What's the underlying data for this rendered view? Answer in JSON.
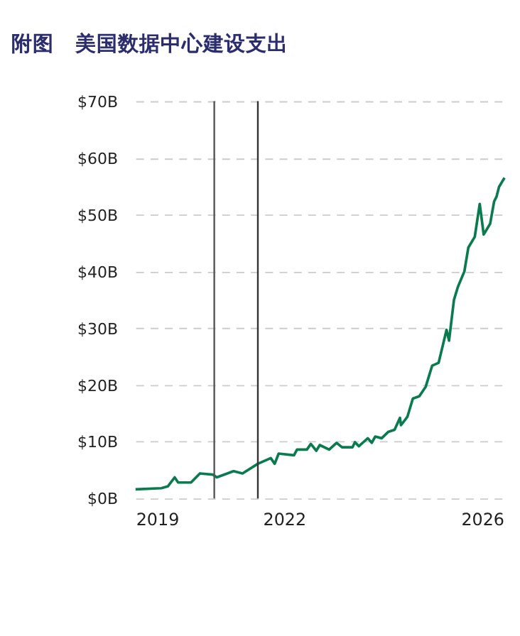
{
  "chart_data": {
    "type": "line",
    "title": "附图　美国数据中心建设支出",
    "x": [
      2019.0,
      2019.52,
      2019.65,
      2019.79,
      2019.86,
      2020.12,
      2020.3,
      2020.56,
      2020.64,
      2020.98,
      2021.16,
      2021.47,
      2021.73,
      2021.81,
      2021.89,
      2022.2,
      2022.26,
      2022.46,
      2022.54,
      2022.65,
      2022.72,
      2022.91,
      2023.06,
      2023.17,
      2023.38,
      2023.43,
      2023.51,
      2023.69,
      2023.77,
      2023.84,
      2023.97,
      2024.1,
      2024.23,
      2024.34,
      2024.36,
      2024.49,
      2024.6,
      2024.73,
      2024.86,
      2024.99,
      2025.12,
      2025.28,
      2025.33,
      2025.43,
      2025.51,
      2025.64,
      2025.72,
      2025.85,
      2025.95,
      2026.03,
      2026.16,
      2026.24,
      2026.29,
      2026.34,
      2026.45
    ],
    "series": [
      {
        "color": "#0a7a4f",
        "values": [
          1.6,
          1.8,
          2.1,
          3.7,
          2.8,
          2.8,
          4.4,
          4.2,
          3.7,
          4.8,
          4.4,
          6.1,
          7.1,
          6.1,
          7.9,
          7.6,
          8.6,
          8.6,
          9.6,
          8.4,
          9.4,
          8.6,
          9.8,
          9.0,
          9.0,
          9.9,
          9.2,
          10.6,
          9.8,
          10.9,
          10.6,
          11.7,
          12.1,
          14.2,
          12.9,
          14.4,
          17.6,
          18.0,
          19.7,
          23.4,
          23.9,
          29.7,
          27.8,
          35.0,
          37.3,
          40.0,
          44.2,
          46.1,
          51.9,
          46.5,
          48.4,
          52.3,
          53.2,
          54.9,
          56.5
        ]
      }
    ],
    "xlim": [
      2019,
      2026.5
    ],
    "xticks": [
      2019,
      2022,
      2026
    ],
    "ylim": [
      0,
      70
    ],
    "yticks": [
      {
        "value": 0,
        "label": "$0B"
      },
      {
        "value": 10,
        "label": "$10B"
      },
      {
        "value": 20,
        "label": "$20B"
      },
      {
        "value": 30,
        "label": "$30B"
      },
      {
        "value": 40,
        "label": "$40B"
      },
      {
        "value": 50,
        "label": "$50B"
      },
      {
        "value": 60,
        "label": "$60B"
      },
      {
        "value": 70,
        "label": "$70B"
      }
    ],
    "ref_lines": [
      {
        "axis": "x",
        "value": 2020.59,
        "color": "#555555"
      },
      {
        "axis": "x",
        "value": 2021.47,
        "color": "#333333"
      }
    ],
    "grid": "y",
    "line_style": "solid"
  }
}
